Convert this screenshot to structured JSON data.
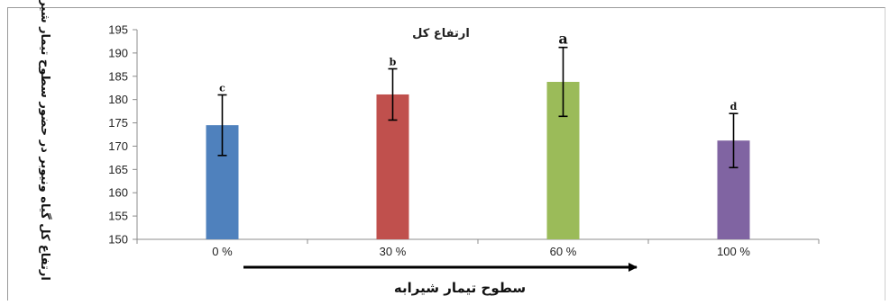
{
  "chart_data": {
    "type": "bar",
    "title": "ارتفاع کل",
    "xlabel": "سطوح تیمار شیرابه",
    "ylabel": "ارتفاع کل گیاه ونیوبر در حضور سطوح تیمار شیرابه",
    "categories": [
      "0 %",
      "30 %",
      "60 %",
      "100 %"
    ],
    "values": [
      174.5,
      181.1,
      183.8,
      171.2
    ],
    "error": [
      6.5,
      5.5,
      7.4,
      5.8
    ],
    "significance": [
      "c",
      "b",
      "a",
      "d"
    ],
    "colors": [
      "#4f81bd",
      "#c0504d",
      "#9bbb59",
      "#8064a2"
    ],
    "ylim": [
      150,
      195
    ],
    "yticks": [
      150,
      155,
      160,
      165,
      170,
      175,
      180,
      185,
      190,
      195
    ],
    "grid": false,
    "legend": "none",
    "arrow_under_x_axis": true
  }
}
